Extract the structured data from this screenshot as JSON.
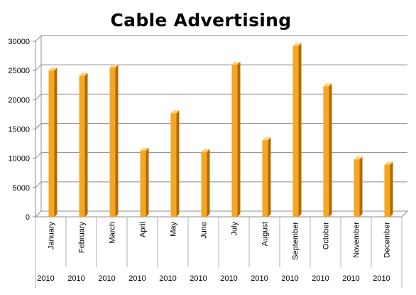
{
  "chart_data": {
    "type": "bar",
    "title": "Cable Advertising",
    "categories": [
      "January",
      "February",
      "March",
      "April",
      "May",
      "June",
      "July",
      "August",
      "September",
      "October",
      "November",
      "December"
    ],
    "category_groups": [
      "2010",
      "2010",
      "2010",
      "2010",
      "2010",
      "2010",
      "2010",
      "2010",
      "2010",
      "2010",
      "2010",
      "2010"
    ],
    "series": [
      {
        "values": [
          25000,
          24100,
          25500,
          11300,
          17700,
          11100,
          26000,
          13100,
          29200,
          22300,
          9800,
          8900
        ]
      }
    ],
    "yticks": [
      0,
      5000,
      10000,
      15000,
      20000,
      25000,
      30000
    ],
    "ylim": [
      0,
      30000
    ],
    "grid": true,
    "legend": "none",
    "colors": {
      "bar_front": "#f5a623",
      "bar_side": "#b36b00",
      "bar_top": "#ffd27a",
      "grid": "#8c8c8c",
      "axis": "#888888"
    }
  }
}
